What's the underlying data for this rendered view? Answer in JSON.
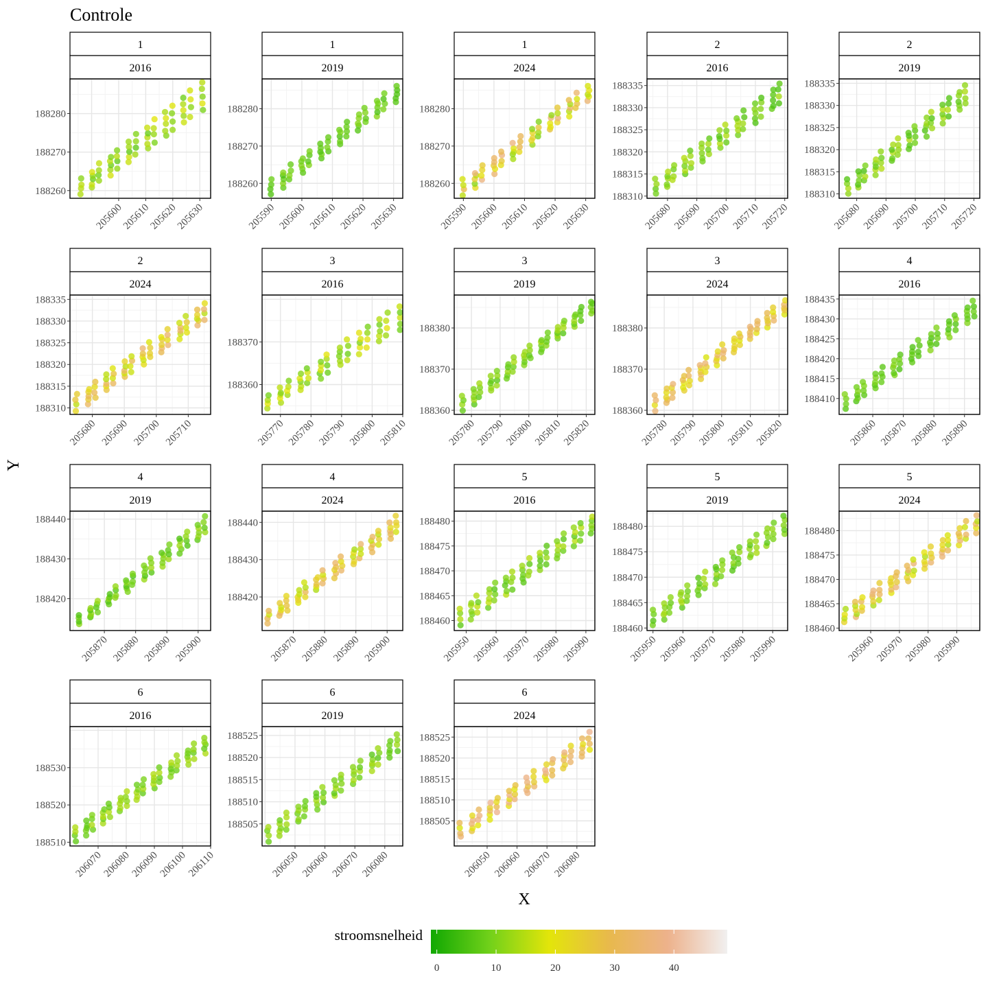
{
  "title": "Controle",
  "xlabel": "X",
  "ylabel": "Y",
  "legend": {
    "title": "stroomsnelheid",
    "ticks": [
      0,
      10,
      20,
      30,
      40
    ],
    "range": [
      -1,
      49
    ],
    "colors": [
      "#11a802",
      "#72d11a",
      "#e3e50a",
      "#e8b94c",
      "#edb28c",
      "#f1f0f0"
    ]
  },
  "colors": {
    "panel_border": "#000000",
    "grid_major": "#e6e6e6",
    "grid_minor": "#f3f3f3",
    "tick_label": "#4d4d4d"
  },
  "chart_data": {
    "type": "scatter",
    "series_name": "stroomsnelheid",
    "panels": [
      {
        "plot": "1",
        "year": "2016",
        "xlim": [
          205582,
          205634
        ],
        "ylim": [
          188258,
          188289
        ],
        "xticks": [
          205600,
          205610,
          205620,
          205630
        ],
        "yticks": [
          188260,
          188270,
          188280
        ],
        "x_start": 205586,
        "x_end": 205630,
        "rows": 14,
        "y_low_start": 188259,
        "y_low_end": 188281,
        "y_high_start": 188263,
        "y_high_end": 188288,
        "speed_mean": 13,
        "speed_spread": 6
      },
      {
        "plot": "1",
        "year": "2019",
        "xlim": [
          205587,
          205633
        ],
        "ylim": [
          188256,
          188288
        ],
        "xticks": [
          205590,
          205600,
          205610,
          205620,
          205630
        ],
        "yticks": [
          188260,
          188270,
          188280
        ],
        "x_start": 205590,
        "x_end": 205630,
        "rows": 14,
        "y_low_start": 188257,
        "y_low_end": 188282,
        "y_high_start": 188261,
        "y_high_end": 188286,
        "speed_mean": 8,
        "speed_spread": 3
      },
      {
        "plot": "1",
        "year": "2024",
        "xlim": [
          205587,
          205633
        ],
        "ylim": [
          188256,
          188288
        ],
        "xticks": [
          205590,
          205600,
          205610,
          205620,
          205630
        ],
        "yticks": [
          188260,
          188270,
          188280
        ],
        "x_start": 205590,
        "x_end": 205630,
        "rows": 14,
        "y_low_start": 188257,
        "y_low_end": 188282,
        "y_high_start": 188261,
        "y_high_end": 188286,
        "speed_mean": 24,
        "speed_spread": 14
      },
      {
        "plot": "2",
        "year": "2016",
        "xlim": [
          205673,
          205721
        ],
        "ylim": [
          188309.5,
          188336.5
        ],
        "xticks": [
          205680,
          205690,
          205700,
          205710,
          205720
        ],
        "yticks": [
          188310,
          188315,
          188320,
          188325,
          188330,
          188335
        ],
        "x_start": 205676,
        "x_end": 205718,
        "rows": 15,
        "y_low_start": 188310.5,
        "y_low_end": 188331,
        "y_high_start": 188314,
        "y_high_end": 188335.5,
        "speed_mean": 10,
        "speed_spread": 5
      },
      {
        "plot": "2",
        "year": "2019",
        "xlim": [
          205674,
          205722
        ],
        "ylim": [
          188309,
          188336
        ],
        "xticks": [
          205680,
          205690,
          205700,
          205710,
          205720
        ],
        "yticks": [
          188310,
          188315,
          188320,
          188325,
          188330,
          188335
        ],
        "x_start": 205677,
        "x_end": 205717,
        "rows": 15,
        "y_low_start": 188310,
        "y_low_end": 188330.5,
        "y_high_start": 188313.5,
        "y_high_end": 188334.5,
        "speed_mean": 10,
        "speed_spread": 5
      },
      {
        "plot": "2",
        "year": "2024",
        "xlim": [
          205673,
          205717
        ],
        "ylim": [
          188308.5,
          188336
        ],
        "xticks": [
          205680,
          205690,
          205700,
          205710
        ],
        "yticks": [
          188310,
          188315,
          188320,
          188325,
          188330,
          188335
        ],
        "x_start": 205675,
        "x_end": 205715,
        "rows": 15,
        "y_low_start": 188309.5,
        "y_low_end": 188330.5,
        "y_high_start": 188313,
        "y_high_end": 188334,
        "speed_mean": 25,
        "speed_spread": 10
      },
      {
        "plot": "3",
        "year": "2016",
        "xlim": [
          205764,
          205810
        ],
        "ylim": [
          188353,
          188381
        ],
        "xticks": [
          205770,
          205780,
          205790,
          205800,
          205810
        ],
        "yticks": [
          188360,
          188370
        ],
        "x_start": 205766,
        "x_end": 205808,
        "rows": 14,
        "y_low_start": 188354.5,
        "y_low_end": 188373,
        "y_high_start": 188357.5,
        "y_high_end": 188378.5,
        "speed_mean": 14,
        "speed_spread": 6
      },
      {
        "plot": "3",
        "year": "2019",
        "xlim": [
          205774,
          205823
        ],
        "ylim": [
          188359,
          188388
        ],
        "xticks": [
          205780,
          205790,
          205800,
          205810,
          205820
        ],
        "yticks": [
          188360,
          188370,
          188380
        ],
        "x_start": 205777,
        "x_end": 205821,
        "rows": 16,
        "y_low_start": 188360,
        "y_low_end": 188383.5,
        "y_high_start": 188363.5,
        "y_high_end": 188386.5,
        "speed_mean": 10,
        "speed_spread": 4
      },
      {
        "plot": "3",
        "year": "2024",
        "xlim": [
          205774,
          205823
        ],
        "ylim": [
          188359,
          188388
        ],
        "xticks": [
          205780,
          205790,
          205800,
          205810,
          205820
        ],
        "yticks": [
          188360,
          188370,
          188380
        ],
        "x_start": 205777,
        "x_end": 205821,
        "rows": 16,
        "y_low_start": 188360,
        "y_low_end": 188383.5,
        "y_high_start": 188363.5,
        "y_high_end": 188386.5,
        "speed_mean": 27,
        "speed_spread": 9
      },
      {
        "plot": "4",
        "year": "2016",
        "xlim": [
          205849,
          205895
        ],
        "ylim": [
          188406,
          188436
        ],
        "xticks": [
          205860,
          205870,
          205880,
          205890
        ],
        "yticks": [
          188410,
          188415,
          188420,
          188425,
          188430,
          188435
        ],
        "x_start": 205851,
        "x_end": 205893,
        "rows": 15,
        "y_low_start": 188407.5,
        "y_low_end": 188430.5,
        "y_high_start": 188411,
        "y_high_end": 188434.5,
        "speed_mean": 8,
        "speed_spread": 3
      },
      {
        "plot": "4",
        "year": "2019",
        "xlim": [
          205859,
          205904
        ],
        "ylim": [
          188412,
          188442
        ],
        "xticks": [
          205870,
          205880,
          205890,
          205900
        ],
        "yticks": [
          188420,
          188430,
          188440
        ],
        "x_start": 205862,
        "x_end": 205902,
        "rows": 15,
        "y_low_start": 188413.5,
        "y_low_end": 188436.5,
        "y_high_start": 188416,
        "y_high_end": 188440.5,
        "speed_mean": 9,
        "speed_spread": 4
      },
      {
        "plot": "4",
        "year": "2024",
        "xlim": [
          205860,
          205905
        ],
        "ylim": [
          188411,
          188443
        ],
        "xticks": [
          205870,
          205880,
          205890,
          205900
        ],
        "yticks": [
          188420,
          188430,
          188440
        ],
        "x_start": 205862,
        "x_end": 205903,
        "rows": 15,
        "y_low_start": 188413,
        "y_low_end": 188437.5,
        "y_high_start": 188416.5,
        "y_high_end": 188441.5,
        "speed_mean": 24,
        "speed_spread": 10
      },
      {
        "plot": "5",
        "year": "2016",
        "xlim": [
          205946,
          205993
        ],
        "ylim": [
          188458,
          188482
        ],
        "xticks": [
          205950,
          205960,
          205970,
          205980,
          205990
        ],
        "yticks": [
          188460,
          188465,
          188470,
          188475,
          188480
        ],
        "x_start": 205948,
        "x_end": 205991,
        "rows": 16,
        "y_low_start": 188459,
        "y_low_end": 188477.5,
        "y_high_start": 188462.5,
        "y_high_end": 188481,
        "speed_mean": 11,
        "speed_spread": 5
      },
      {
        "plot": "5",
        "year": "2019",
        "xlim": [
          205948,
          205995
        ],
        "ylim": [
          188459.5,
          188483
        ],
        "xticks": [
          205950,
          205960,
          205970,
          205980,
          205990
        ],
        "yticks": [
          188460,
          188465,
          188470,
          188475,
          188480
        ],
        "x_start": 205950,
        "x_end": 205993,
        "rows": 16,
        "y_low_start": 188460.5,
        "y_low_end": 188478.5,
        "y_high_start": 188463.5,
        "y_high_end": 188482,
        "speed_mean": 10,
        "speed_spread": 4
      },
      {
        "plot": "5",
        "year": "2024",
        "xlim": [
          205949,
          205998
        ],
        "ylim": [
          188459.5,
          188484
        ],
        "xticks": [
          205960,
          205970,
          205980,
          205990
        ],
        "yticks": [
          188460,
          188465,
          188470,
          188475,
          188480
        ],
        "x_start": 205951,
        "x_end": 205996,
        "rows": 16,
        "y_low_start": 188461,
        "y_low_end": 188479.5,
        "y_high_start": 188464,
        "y_high_end": 188483,
        "speed_mean": 25,
        "speed_spread": 11
      },
      {
        "plot": "6",
        "year": "2016",
        "xlim": [
          206060,
          206110
        ],
        "ylim": [
          188509,
          188541
        ],
        "xticks": [
          206070,
          206080,
          206090,
          206100,
          206110
        ],
        "yticks": [
          188510,
          188520,
          188530
        ],
        "x_start": 206062,
        "x_end": 206107,
        "rows": 16,
        "y_low_start": 188510.5,
        "y_low_end": 188534,
        "y_high_start": 188514,
        "y_high_end": 188538,
        "speed_mean": 11,
        "speed_spread": 4
      },
      {
        "plot": "6",
        "year": "2019",
        "xlim": [
          206039,
          206086
        ],
        "ylim": [
          188500,
          188527
        ],
        "xticks": [
          206050,
          206060,
          206070,
          206080
        ],
        "yticks": [
          188505,
          188510,
          188515,
          188520,
          188525
        ],
        "x_start": 206041,
        "x_end": 206084,
        "rows": 15,
        "y_low_start": 188501,
        "y_low_end": 188521.5,
        "y_high_start": 188504.5,
        "y_high_end": 188525,
        "speed_mean": 10,
        "speed_spread": 4
      },
      {
        "plot": "6",
        "year": "2024",
        "xlim": [
          206039,
          206086
        ],
        "ylim": [
          188499,
          188527.5
        ],
        "xticks": [
          206050,
          206060,
          206070,
          206080
        ],
        "yticks": [
          188505,
          188510,
          188515,
          188520,
          188525
        ],
        "x_start": 206041,
        "x_end": 206084,
        "rows": 15,
        "y_low_start": 188501,
        "y_low_end": 188522,
        "y_high_start": 188504.5,
        "y_high_end": 188526,
        "speed_mean": 29,
        "speed_spread": 11
      }
    ]
  }
}
